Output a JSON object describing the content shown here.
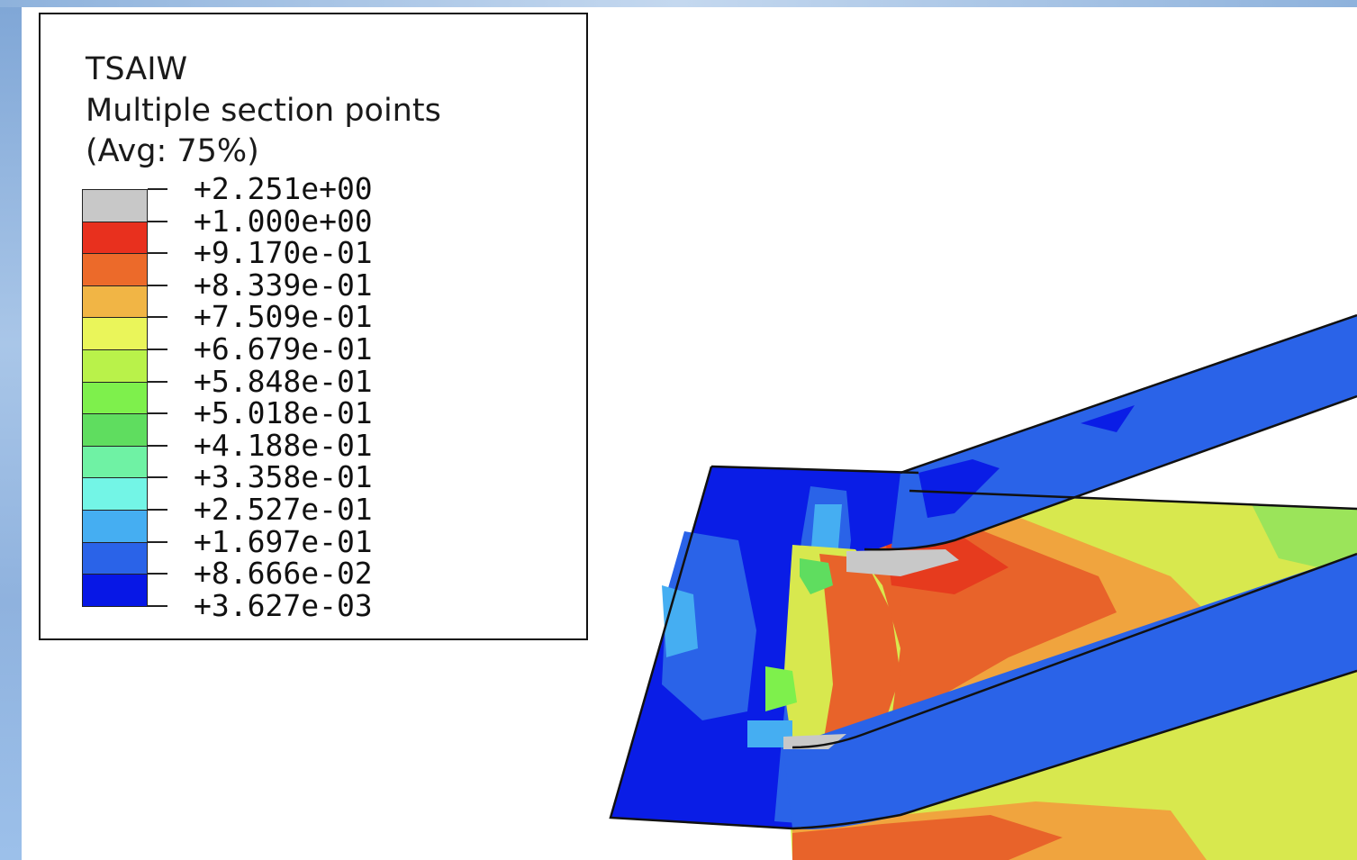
{
  "legend": {
    "variable": "TSAIW",
    "subtitle": "Multiple section points",
    "averaging": "(Avg: 75%)",
    "labels": [
      "+2.251e+00",
      "+1.000e+00",
      "+9.170e-01",
      "+8.339e-01",
      "+7.509e-01",
      "+6.679e-01",
      "+5.848e-01",
      "+5.018e-01",
      "+4.188e-01",
      "+3.358e-01",
      "+2.527e-01",
      "+1.697e-01",
      "+8.666e-02",
      "+3.627e-03"
    ],
    "colors": [
      "#c8c8c8",
      "#e8301e",
      "#ec6a2a",
      "#f1b545",
      "#eaf55a",
      "#b9f24a",
      "#7ef04c",
      "#5fdd5f",
      "#6ff2a4",
      "#73f5e6",
      "#45aef2",
      "#2a63e8",
      "#0717e6"
    ]
  }
}
